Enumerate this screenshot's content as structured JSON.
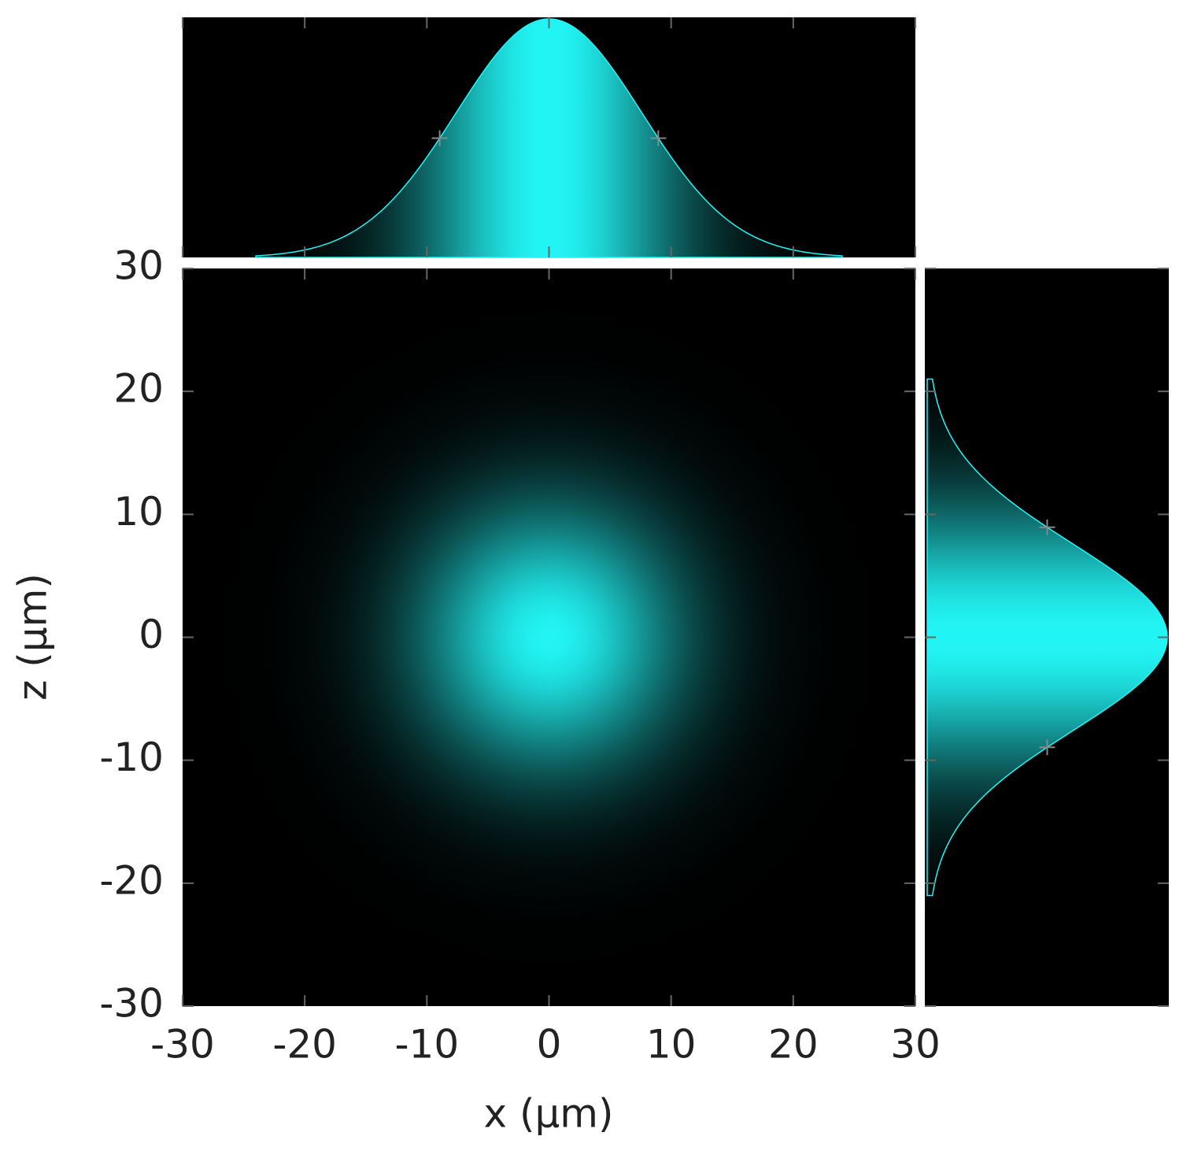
{
  "chart_data": {
    "type": "gaussian2d",
    "xlabel": "x (µm)",
    "ylabel": "z (µm)",
    "xlim": [
      -30,
      30
    ],
    "ylim": [
      -30,
      30
    ],
    "xticks": [
      -30,
      -20,
      -10,
      0,
      10,
      20,
      30
    ],
    "yticks": [
      -30,
      -20,
      -10,
      0,
      10,
      20,
      30
    ],
    "center": [
      0,
      0
    ],
    "sigma": 7.6,
    "x_profile_range": [
      -24,
      24
    ],
    "z_profile_range": [
      -21,
      21
    ],
    "half_max_markers": true,
    "color": "#22f5f5",
    "background": "#000000"
  }
}
